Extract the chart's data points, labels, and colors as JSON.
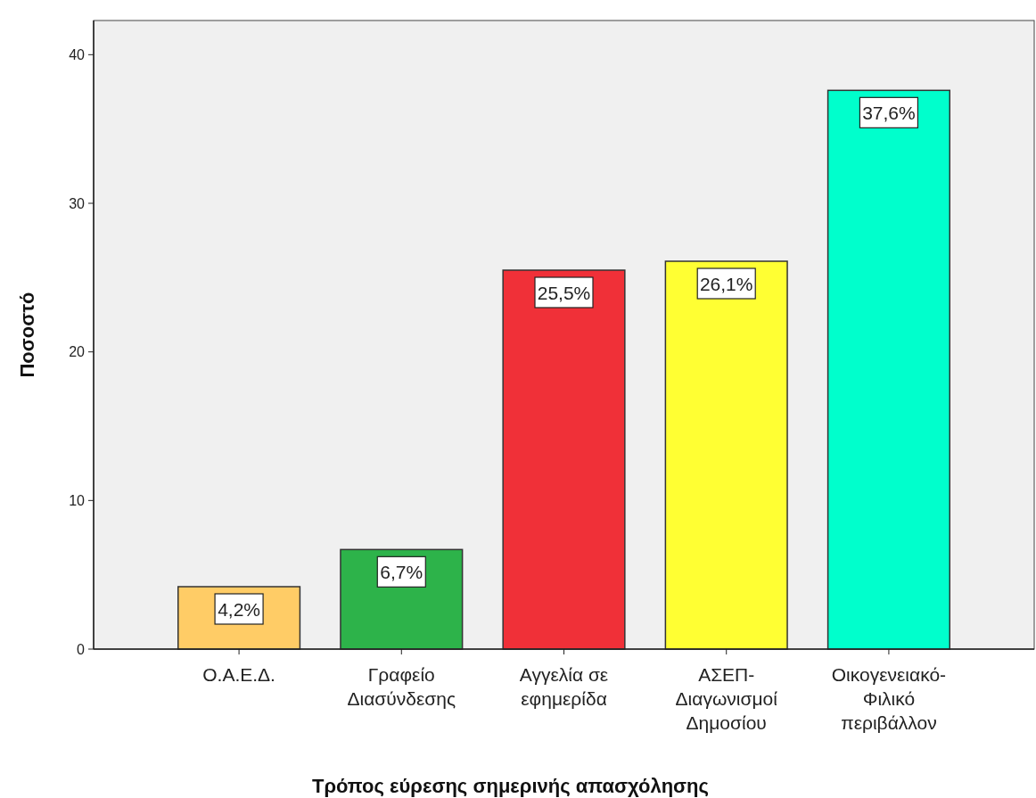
{
  "chart_data": {
    "type": "bar",
    "xlabel": "Τρόπος εύρεσης σημερινής απασχόλησης",
    "ylabel": "Ποσοστό",
    "categories": [
      "Ο.Α.Ε.Δ.",
      "Γραφείο Διασύνδεσης",
      "Αγγελία σε εφημερίδα",
      "ΑΣΕΠ-Διαγωνισμοί Δημοσίου",
      "Οικογενειακό-Φιλικό περιβάλλον"
    ],
    "values": [
      4.2,
      6.7,
      25.5,
      26.1,
      37.6
    ],
    "colors": [
      "#ffcc66",
      "#2db34a",
      "#f03038",
      "#ffff33",
      "#00ffcc"
    ],
    "value_labels": [
      "4,2%",
      "6,7%",
      "25,5%",
      "26,1%",
      "37,6%"
    ],
    "ylim": [
      0,
      42.3
    ],
    "yticks": [
      0,
      10,
      20,
      30,
      40
    ],
    "grid": false
  }
}
